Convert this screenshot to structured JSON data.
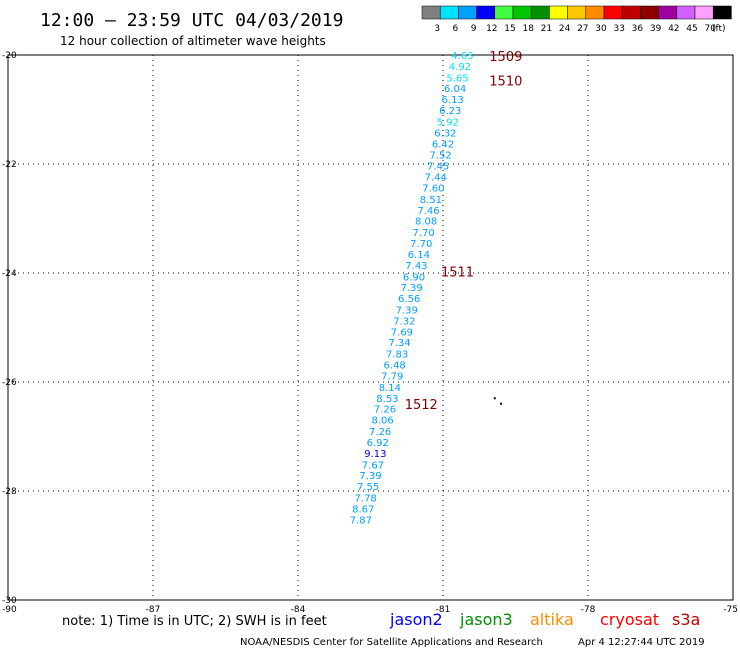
{
  "header": {
    "title": "12:00 – 23:59 UTC 04/03/2019",
    "subtitle": "12 hour collection of altimeter wave heights"
  },
  "scale": {
    "unit": "(ft)",
    "bins": [
      {
        "color": "#808080",
        "label": "3"
      },
      {
        "color": "#00e0ff",
        "label": "6"
      },
      {
        "color": "#00a0ff",
        "label": "9"
      },
      {
        "color": "#0000ff",
        "label": "12"
      },
      {
        "color": "#40ff40",
        "label": "15"
      },
      {
        "color": "#00c800",
        "label": "18"
      },
      {
        "color": "#009000",
        "label": "21"
      },
      {
        "color": "#ffff00",
        "label": "24"
      },
      {
        "color": "#ffc800",
        "label": "27"
      },
      {
        "color": "#ff8c00",
        "label": "30"
      },
      {
        "color": "#ff0000",
        "label": "33"
      },
      {
        "color": "#c00000",
        "label": "36"
      },
      {
        "color": "#900000",
        "label": "39"
      },
      {
        "color": "#a000a0",
        "label": "42"
      },
      {
        "color": "#d060ff",
        "label": "45"
      },
      {
        "color": "#ffa0ff",
        "label": "70"
      },
      {
        "color": "#000000",
        "label": ""
      }
    ]
  },
  "chart_data": {
    "type": "scatter",
    "title": "12:00 – 23:59 UTC 04/03/2019",
    "subtitle": "12 hour collection of altimeter wave heights",
    "xlim": [
      -90,
      -75
    ],
    "ylim": [
      -30,
      -20
    ],
    "xticks": [
      -90,
      -87,
      -84,
      -81,
      -78,
      -75
    ],
    "yticks": [
      -20,
      -22,
      -24,
      -26,
      -28,
      -30
    ],
    "grid": true,
    "points": [
      {
        "lon": -80.6,
        "lat": -20.0,
        "swh": "4.63",
        "color": "#00e0ff"
      },
      {
        "lon": -80.65,
        "lat": -20.2,
        "swh": "4.92",
        "color": "#00e0ff"
      },
      {
        "lon": -80.7,
        "lat": -20.41,
        "swh": "5.65",
        "color": "#00e0ff"
      },
      {
        "lon": -80.75,
        "lat": -20.61,
        "swh": "6.04",
        "color": "#00a0ff"
      },
      {
        "lon": -80.8,
        "lat": -20.81,
        "swh": "6.13",
        "color": "#00a0ff"
      },
      {
        "lon": -80.85,
        "lat": -21.01,
        "swh": "6.23",
        "color": "#00a0ff"
      },
      {
        "lon": -80.9,
        "lat": -21.22,
        "swh": "5.92",
        "color": "#00e0ff"
      },
      {
        "lon": -80.95,
        "lat": -21.42,
        "swh": "6.32",
        "color": "#00a0ff"
      },
      {
        "lon": -81.0,
        "lat": -21.62,
        "swh": "6.42",
        "color": "#00a0ff"
      },
      {
        "lon": -81.05,
        "lat": -21.83,
        "swh": "7.52",
        "color": "#00a0ff"
      },
      {
        "lon": -81.1,
        "lat": -22.03,
        "swh": "7.45",
        "color": "#00a0ff"
      },
      {
        "lon": -81.15,
        "lat": -22.23,
        "swh": "7.44",
        "color": "#00a0ff"
      },
      {
        "lon": -81.2,
        "lat": -22.43,
        "swh": "7.60",
        "color": "#00a0ff"
      },
      {
        "lon": -81.25,
        "lat": -22.64,
        "swh": "8.51",
        "color": "#00a0ff"
      },
      {
        "lon": -81.3,
        "lat": -22.84,
        "swh": "7.46",
        "color": "#00a0ff"
      },
      {
        "lon": -81.35,
        "lat": -23.04,
        "swh": "8.08",
        "color": "#00a0ff"
      },
      {
        "lon": -81.4,
        "lat": -23.25,
        "swh": "7.70",
        "color": "#00a0ff"
      },
      {
        "lon": -81.45,
        "lat": -23.45,
        "swh": "7.70",
        "color": "#00a0ff"
      },
      {
        "lon": -81.5,
        "lat": -23.65,
        "swh": "6.14",
        "color": "#00a0ff"
      },
      {
        "lon": -81.55,
        "lat": -23.85,
        "swh": "7.43",
        "color": "#00a0ff"
      },
      {
        "lon": -81.6,
        "lat": -24.06,
        "swh": "6.90",
        "color": "#00a0ff"
      },
      {
        "lon": -81.65,
        "lat": -24.26,
        "swh": "7.39",
        "color": "#00a0ff"
      },
      {
        "lon": -81.7,
        "lat": -24.46,
        "swh": "6.56",
        "color": "#00a0ff"
      },
      {
        "lon": -81.75,
        "lat": -24.67,
        "swh": "7.39",
        "color": "#00a0ff"
      },
      {
        "lon": -81.8,
        "lat": -24.87,
        "swh": "7.32",
        "color": "#00a0ff"
      },
      {
        "lon": -81.85,
        "lat": -25.07,
        "swh": "7.69",
        "color": "#00a0ff"
      },
      {
        "lon": -81.9,
        "lat": -25.27,
        "swh": "7.34",
        "color": "#00a0ff"
      },
      {
        "lon": -81.95,
        "lat": -25.48,
        "swh": "7.83",
        "color": "#00a0ff"
      },
      {
        "lon": -82.0,
        "lat": -25.68,
        "swh": "6.48",
        "color": "#00a0ff"
      },
      {
        "lon": -82.05,
        "lat": -25.88,
        "swh": "7.79",
        "color": "#00a0ff"
      },
      {
        "lon": -82.1,
        "lat": -26.09,
        "swh": "8.14",
        "color": "#00a0ff"
      },
      {
        "lon": -82.15,
        "lat": -26.29,
        "swh": "8.53",
        "color": "#00a0ff"
      },
      {
        "lon": -82.2,
        "lat": -26.49,
        "swh": "7.26",
        "color": "#00a0ff"
      },
      {
        "lon": -82.25,
        "lat": -26.69,
        "swh": "8.06",
        "color": "#00a0ff"
      },
      {
        "lon": -82.3,
        "lat": -26.9,
        "swh": "7.26",
        "color": "#00a0ff"
      },
      {
        "lon": -82.35,
        "lat": -27.1,
        "swh": "6.92",
        "color": "#00a0ff"
      },
      {
        "lon": -82.4,
        "lat": -27.3,
        "swh": "9.13",
        "color": "#0000c8"
      },
      {
        "lon": -82.45,
        "lat": -27.51,
        "swh": "7.67",
        "color": "#00a0ff"
      },
      {
        "lon": -82.5,
        "lat": -27.71,
        "swh": "7.39",
        "color": "#00a0ff"
      },
      {
        "lon": -82.55,
        "lat": -27.91,
        "swh": "7.55",
        "color": "#00a0ff"
      },
      {
        "lon": -82.6,
        "lat": -28.12,
        "swh": "7.78",
        "color": "#00a0ff"
      },
      {
        "lon": -82.65,
        "lat": -28.32,
        "swh": "8.67",
        "color": "#00a0ff"
      },
      {
        "lon": -82.7,
        "lat": -28.52,
        "swh": "7.87",
        "color": "#00a0ff"
      }
    ],
    "pass_labels": [
      {
        "text": "1509",
        "lon": -79.7,
        "lat": -20.02
      },
      {
        "text": "1510",
        "lon": -79.7,
        "lat": -20.47
      },
      {
        "text": "1511",
        "lon": -80.7,
        "lat": -23.97
      },
      {
        "text": "1512",
        "lon": -81.45,
        "lat": -26.4
      }
    ],
    "dots": [
      {
        "lon": -79.95,
        "lat": -26.28
      },
      {
        "lon": -79.82,
        "lat": -26.38
      }
    ]
  },
  "note": "note:  1) Time is in UTC; 2) SWH is in feet",
  "satellites": [
    {
      "name": "jason2",
      "color": "#0000ff"
    },
    {
      "name": "jason3",
      "color": "#009000"
    },
    {
      "name": "altika",
      "color": "#ff8c00"
    },
    {
      "name": "cryosat",
      "color": "#ff0000"
    },
    {
      "name": "s3a",
      "color": "#c00000"
    }
  ],
  "footer": {
    "credit": "NOAA/NESDIS Center for Satellite Applications and Research",
    "timestamp": "Apr  4 12:27:44 UTC 2019"
  }
}
